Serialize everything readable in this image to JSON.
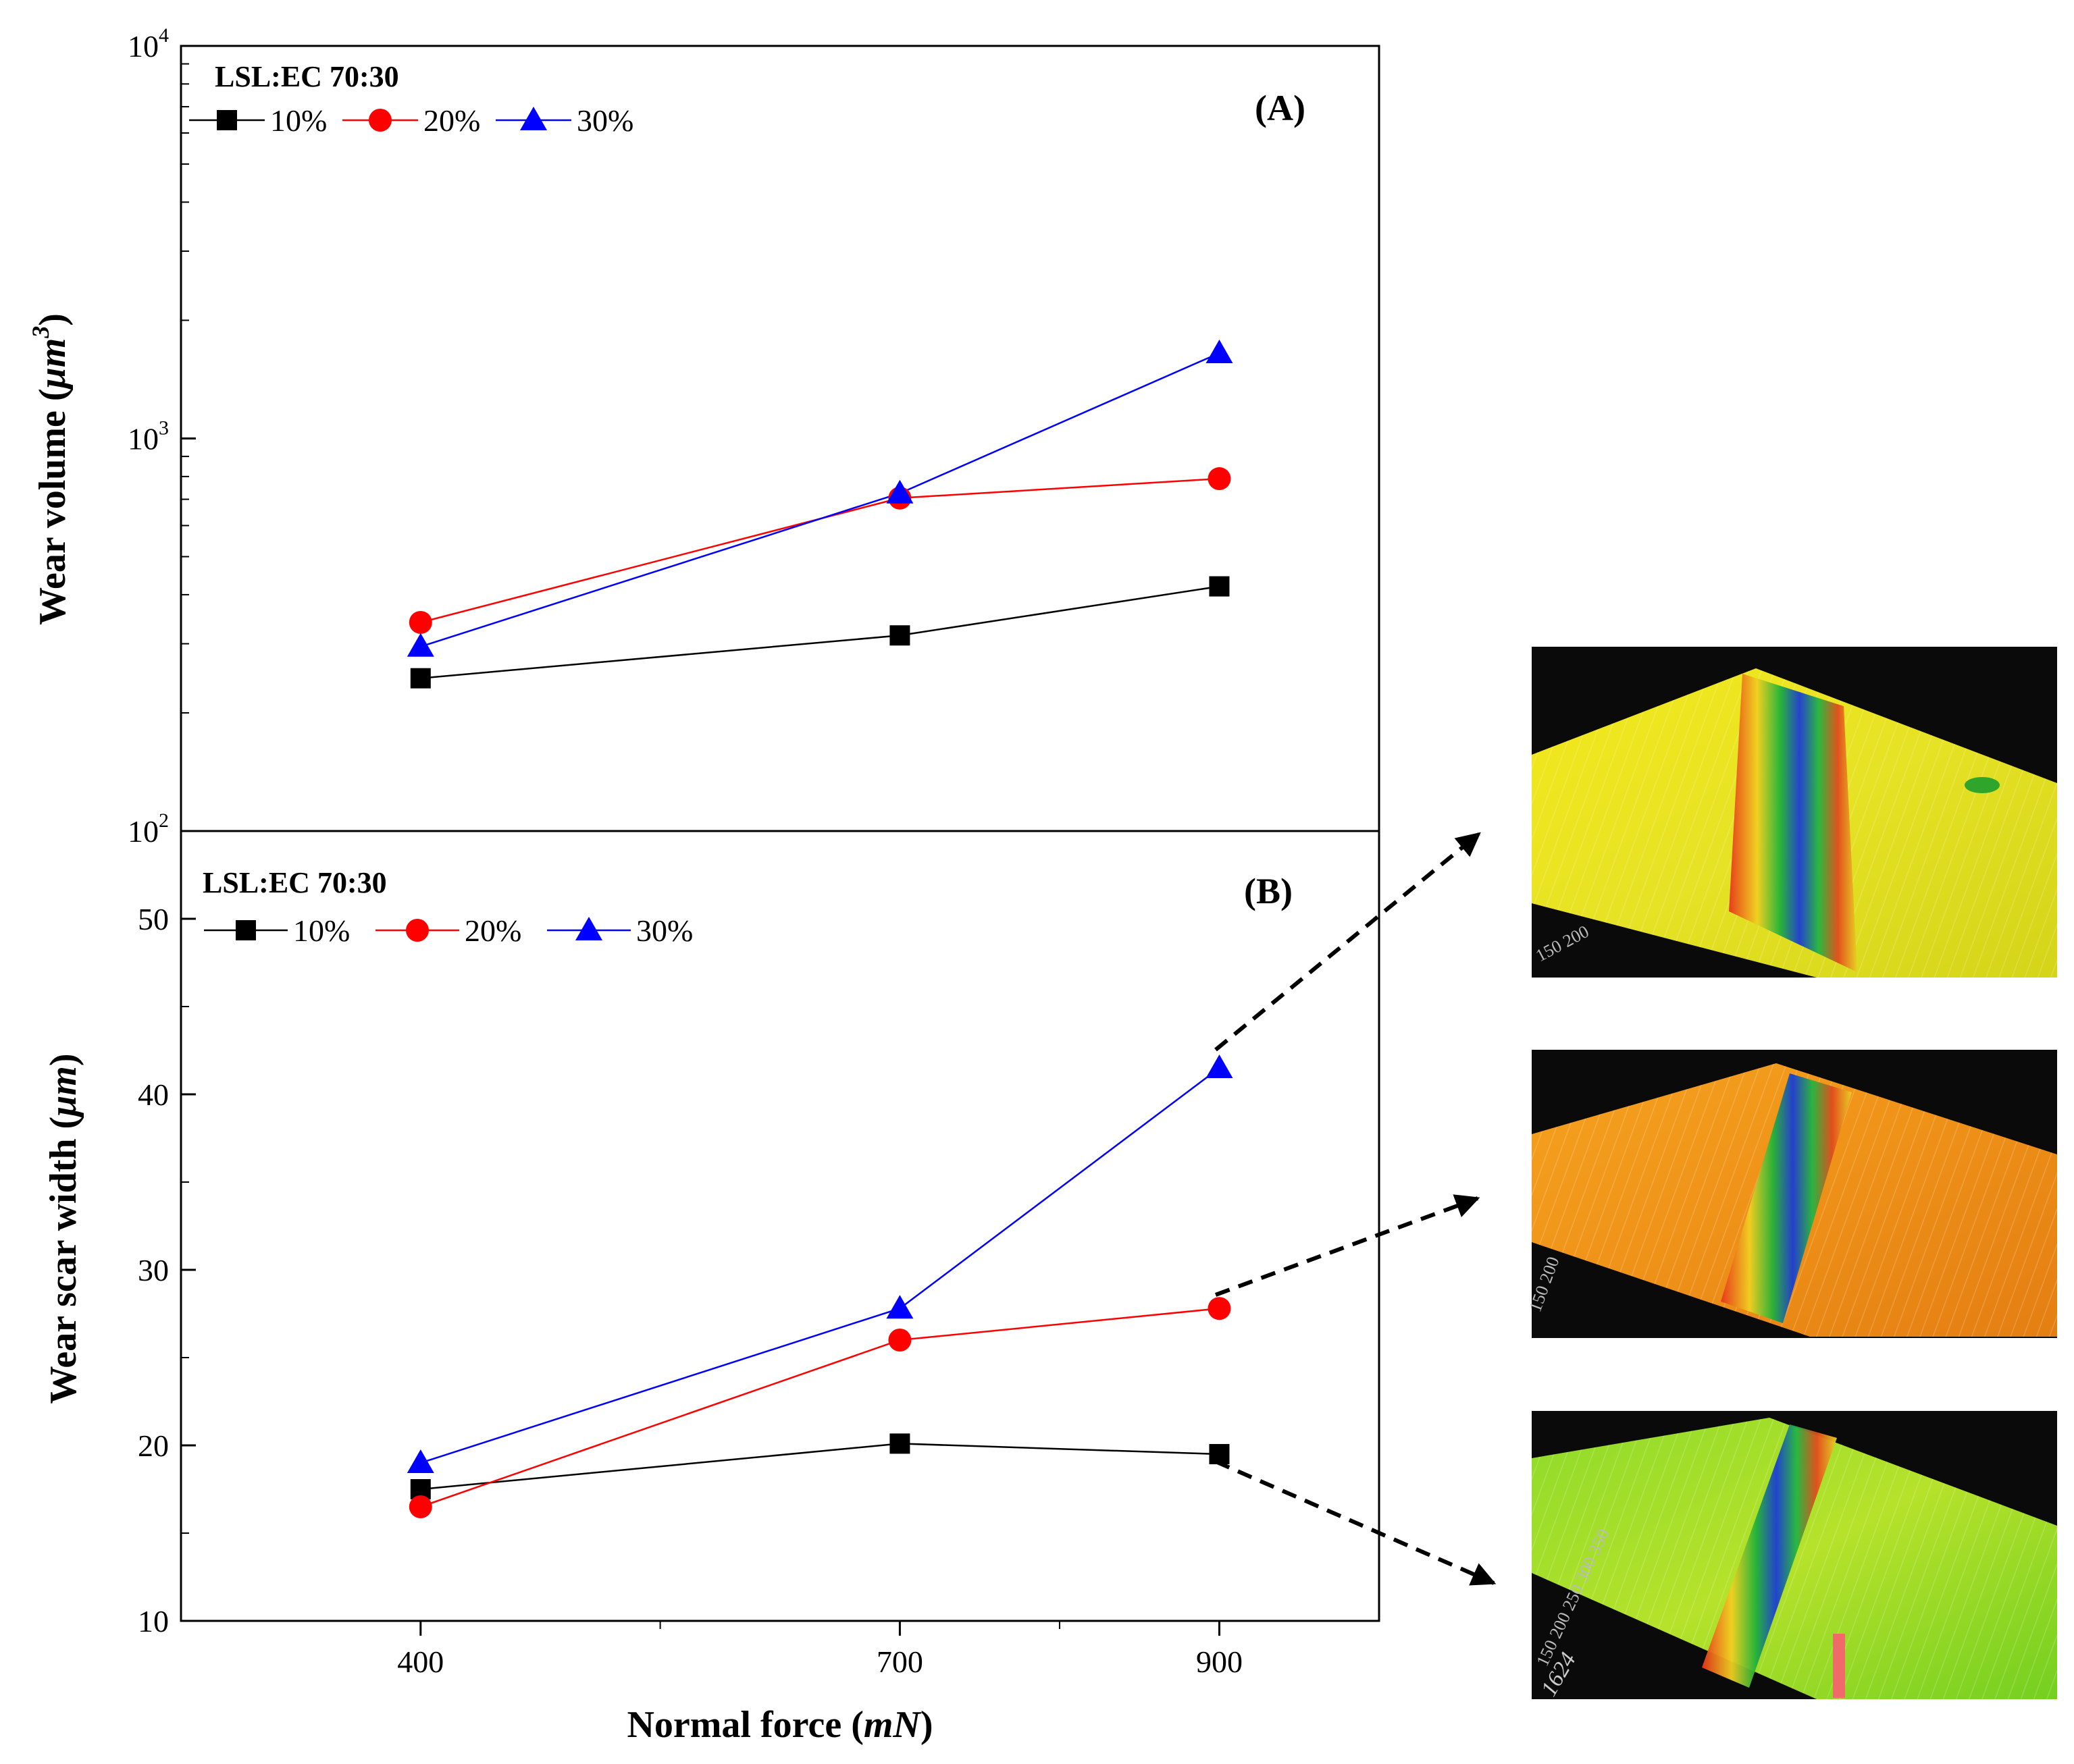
{
  "chart_data": [
    {
      "panel": "A",
      "type": "line",
      "panel_label": "(A)",
      "legend_title": "LSL:EC 70:30",
      "ylabel": "Wear volume (",
      "ylabel_italic": "μm",
      "ylabel_sup": "3",
      "ylabel_close": ")",
      "yscale": "log",
      "ylim": [
        100,
        10000
      ],
      "y_ticks": [
        {
          "value": 100,
          "base": "10",
          "exp": "2"
        },
        {
          "value": 1000,
          "base": "10",
          "exp": "3"
        },
        {
          "value": 10000,
          "base": "10",
          "exp": "4"
        }
      ],
      "x": [
        400,
        700,
        900
      ],
      "series": [
        {
          "name": "10%",
          "marker": "square",
          "color": "#000000",
          "values": [
            245,
            315,
            420
          ]
        },
        {
          "name": "20%",
          "marker": "circle",
          "color": "#ff0000",
          "values": [
            340,
            705,
            790
          ]
        },
        {
          "name": "30%",
          "marker": "triangle",
          "color": "#0000ff",
          "values": [
            295,
            725,
            1650
          ]
        }
      ]
    },
    {
      "panel": "B",
      "type": "line",
      "panel_label": "(B)",
      "legend_title": "LSL:EC 70:30",
      "ylabel": "Wear scar width (",
      "ylabel_italic": "μm",
      "ylabel_close": ")",
      "yscale": "linear",
      "ylim": [
        10,
        55
      ],
      "y_ticks": [
        {
          "value": 10,
          "label": "10"
        },
        {
          "value": 20,
          "label": "20"
        },
        {
          "value": 30,
          "label": "30"
        },
        {
          "value": 40,
          "label": "40"
        },
        {
          "value": 50,
          "label": "50"
        }
      ],
      "x": [
        400,
        700,
        900
      ],
      "series": [
        {
          "name": "10%",
          "marker": "square",
          "color": "#000000",
          "values": [
            17.5,
            20.1,
            19.5
          ]
        },
        {
          "name": "20%",
          "marker": "circle",
          "color": "#ff0000",
          "values": [
            16.5,
            26.0,
            27.8
          ]
        },
        {
          "name": "30%",
          "marker": "triangle",
          "color": "#0000ff",
          "values": [
            19.0,
            27.8,
            41.5
          ]
        }
      ]
    }
  ],
  "x_axis": {
    "xlim": [
      250,
      1000
    ],
    "ticks": [
      400,
      700,
      900
    ],
    "tick_labels": [
      "400",
      "700",
      "900"
    ],
    "minor_ticks": [
      550,
      800
    ],
    "label": "Normal force (",
    "label_italic": "mN",
    "label_close": ")"
  },
  "surface_images": [
    {
      "name": "30% wear track 3D profile",
      "series": "30%",
      "palette": "yellow-green"
    },
    {
      "name": "20% wear track 3D profile",
      "series": "20%",
      "palette": "orange"
    },
    {
      "name": "10% wear track 3D profile",
      "series": "10%",
      "palette": "green-red"
    }
  ],
  "image_axis_text": {
    "img1": "150 200",
    "img2": "150 200",
    "img3": "150 200 250 300 350",
    "img3_readout": "1624"
  },
  "colors": {
    "axis": "#000000",
    "s10": "#000000",
    "s20": "#ff0000",
    "s30": "#0000ff",
    "arrow": "#000000"
  }
}
